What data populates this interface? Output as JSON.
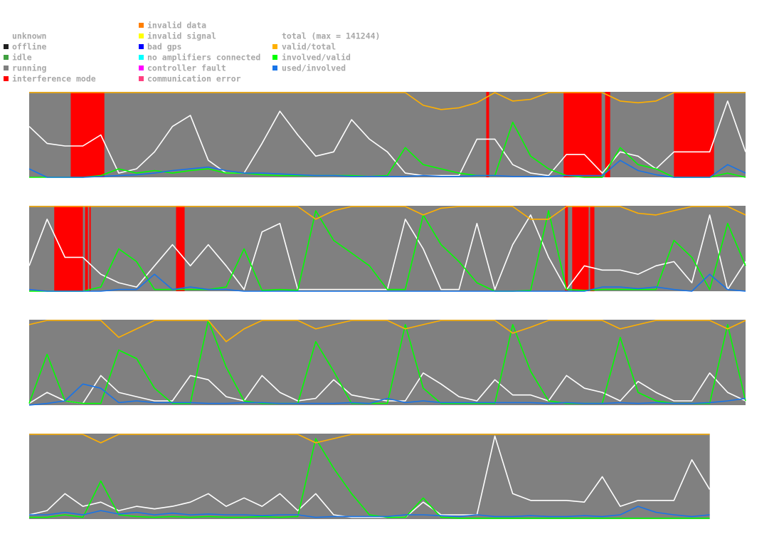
{
  "legend": {
    "states": [
      {
        "label": "unknown",
        "color": "#ffffff"
      },
      {
        "label": "offline",
        "color": "#202020"
      },
      {
        "label": "idle",
        "color": "#40a040"
      },
      {
        "label": "running",
        "color": "#808080"
      },
      {
        "label": "interference mode",
        "color": "#ff0000"
      },
      {
        "label": "invalid data",
        "color": "#ff7f00"
      },
      {
        "label": "invalid signal",
        "color": "#ffff00"
      },
      {
        "label": "bad gps",
        "color": "#0000ff"
      },
      {
        "label": "no amplifiers connected",
        "color": "#00ffff"
      },
      {
        "label": "controller fault",
        "color": "#ff00ff"
      },
      {
        "label": "communication error",
        "color": "#ff4080"
      }
    ],
    "lines": [
      {
        "label": "total (max = 141244)",
        "color": "#ffffff"
      },
      {
        "label": "valid/total",
        "color": "#ffb000"
      },
      {
        "label": "involved/valid",
        "color": "#00ff00"
      },
      {
        "label": "used/involved",
        "color": "#1874e8"
      }
    ]
  },
  "chart_data": [
    {
      "type": "line",
      "xlim": [
        0,
        100
      ],
      "ylim": [
        0,
        1
      ],
      "x": [
        0,
        2.5,
        5,
        7.5,
        10,
        12.5,
        15,
        17.5,
        20,
        22.5,
        25,
        27.5,
        30,
        32.5,
        35,
        37.5,
        40,
        42.5,
        45,
        47.5,
        50,
        52.5,
        55,
        57.5,
        60,
        62.5,
        65,
        67.5,
        70,
        72.5,
        75,
        77.5,
        80,
        82.5,
        85,
        87.5,
        90,
        92.5,
        95,
        97.5,
        100
      ],
      "interference": [
        [
          5.8,
          10.5
        ],
        [
          63.8,
          64.2
        ],
        [
          74.6,
          79.9
        ],
        [
          80.4,
          81.1
        ],
        [
          90,
          95.6
        ]
      ],
      "series": [
        {
          "color": "#ffffff",
          "values": [
            0.6,
            0.4,
            0.37,
            0.37,
            0.5,
            0.05,
            0.1,
            0.3,
            0.6,
            0.73,
            0.2,
            0.05,
            0.05,
            0.4,
            0.78,
            0.5,
            0.25,
            0.3,
            0.68,
            0.45,
            0.3,
            0.05,
            0.02,
            0.02,
            0.02,
            0.45,
            0.45,
            0.15,
            0.05,
            0.02,
            0.27,
            0.27,
            0.05,
            0.3,
            0.25,
            0.1,
            0.3,
            0.3,
            0.3,
            0.9,
            0.3
          ]
        },
        {
          "color": "#00ff00",
          "values": [
            0,
            0,
            0,
            0,
            0.02,
            0.1,
            0.05,
            0.08,
            0.05,
            0.08,
            0.1,
            0.05,
            0.05,
            0.03,
            0.02,
            0.02,
            0.02,
            0.02,
            0.02,
            0.01,
            0.02,
            0.35,
            0.15,
            0.1,
            0.05,
            0.02,
            0.02,
            0.65,
            0.25,
            0.1,
            0.02,
            0,
            0,
            0.35,
            0.15,
            0.1,
            0,
            0,
            0,
            0.05,
            0
          ]
        },
        {
          "color": "#1874e8",
          "values": [
            0.1,
            0,
            0,
            0,
            0.01,
            0.02,
            0.03,
            0.05,
            0.08,
            0.1,
            0.12,
            0.08,
            0.05,
            0.05,
            0.04,
            0.03,
            0.02,
            0.02,
            0.01,
            0.01,
            0.01,
            0.01,
            0.02,
            0.01,
            0.01,
            0.02,
            0.02,
            0.01,
            0.01,
            0.01,
            0.02,
            0.02,
            0.02,
            0.2,
            0.08,
            0.03,
            0,
            0,
            0,
            0.15,
            0.05
          ]
        },
        {
          "color": "#ffb000",
          "values": [
            1,
            1,
            1,
            1,
            1,
            1,
            1,
            1,
            1,
            1,
            1,
            1,
            1,
            1,
            1,
            1,
            1,
            1,
            1,
            1,
            1,
            1,
            0.85,
            0.8,
            0.82,
            0.88,
            1,
            0.9,
            0.92,
            1,
            1,
            1,
            1,
            0.9,
            0.88,
            0.9,
            1,
            1,
            1,
            1,
            1
          ]
        }
      ]
    },
    {
      "type": "line",
      "xlim": [
        0,
        100
      ],
      "ylim": [
        0,
        1
      ],
      "x": [
        0,
        2.5,
        5,
        7.5,
        10,
        12.5,
        15,
        17.5,
        20,
        22.5,
        25,
        27.5,
        30,
        32.5,
        35,
        37.5,
        40,
        42.5,
        45,
        47.5,
        50,
        52.5,
        55,
        57.5,
        60,
        62.5,
        65,
        67.5,
        70,
        72.5,
        75,
        77.5,
        80,
        82.5,
        85,
        87.5,
        90,
        92.5,
        95,
        97.5,
        100
      ],
      "interference": [
        [
          3.5,
          7.5
        ],
        [
          7.8,
          8.2
        ],
        [
          8.4,
          8.6
        ],
        [
          20.5,
          21.7
        ],
        [
          74.8,
          75.2
        ],
        [
          75.8,
          78.1
        ],
        [
          78.3,
          78.9
        ]
      ],
      "series": [
        {
          "color": "#ffffff",
          "values": [
            0.3,
            0.85,
            0.4,
            0.4,
            0.2,
            0.1,
            0.05,
            0.3,
            0.55,
            0.3,
            0.55,
            0.3,
            0.02,
            0.7,
            0.8,
            0.02,
            0.02,
            0.02,
            0.02,
            0.02,
            0.02,
            0.85,
            0.5,
            0.02,
            0.02,
            0.8,
            0.02,
            0.55,
            0.9,
            0.4,
            0.02,
            0.3,
            0.25,
            0.25,
            0.2,
            0.3,
            0.35,
            0.1,
            0.9,
            0.02,
            0.35
          ]
        },
        {
          "color": "#00ff00",
          "values": [
            0,
            0,
            0,
            0,
            0.05,
            0.5,
            0.35,
            0.02,
            0.02,
            0.02,
            0.02,
            0.05,
            0.5,
            0.01,
            0.02,
            0.01,
            0.95,
            0.6,
            0.45,
            0.3,
            0.02,
            0.02,
            0.9,
            0.55,
            0.35,
            0.1,
            0,
            0,
            0.01,
            0.95,
            0.02,
            0.01,
            0.02,
            0.02,
            0.02,
            0.02,
            0.6,
            0.4,
            0.02,
            0.8,
            0.3
          ]
        },
        {
          "color": "#1874e8",
          "values": [
            0.02,
            0,
            0,
            0,
            0,
            0.02,
            0.02,
            0.2,
            0.02,
            0.05,
            0.02,
            0.02,
            0,
            0,
            0,
            0,
            0,
            0,
            0,
            0,
            0,
            0,
            0,
            0,
            0,
            0,
            0,
            0,
            0,
            0,
            0,
            0,
            0.05,
            0.05,
            0.03,
            0.05,
            0.02,
            0,
            0.2,
            0.02,
            0
          ]
        },
        {
          "color": "#ffb000",
          "values": [
            1,
            1,
            1,
            1,
            1,
            1,
            1,
            1,
            1,
            1,
            1,
            1,
            1,
            1,
            1,
            1,
            0.85,
            0.95,
            1,
            1,
            1,
            1,
            0.9,
            0.98,
            1,
            1,
            1,
            1,
            0.85,
            0.85,
            1,
            1,
            1,
            1,
            0.92,
            0.9,
            0.95,
            1,
            1,
            1,
            0.9
          ]
        }
      ]
    },
    {
      "type": "line",
      "xlim": [
        0,
        100
      ],
      "ylim": [
        0,
        1
      ],
      "x": [
        0,
        2.5,
        5,
        7.5,
        10,
        12.5,
        15,
        17.5,
        20,
        22.5,
        25,
        27.5,
        30,
        32.5,
        35,
        37.5,
        40,
        42.5,
        45,
        47.5,
        50,
        52.5,
        55,
        57.5,
        60,
        62.5,
        65,
        67.5,
        70,
        72.5,
        75,
        77.5,
        80,
        82.5,
        85,
        87.5,
        90,
        92.5,
        95,
        97.5,
        100
      ],
      "interference": [],
      "series": [
        {
          "color": "#ffffff",
          "values": [
            0.02,
            0.15,
            0.05,
            0.02,
            0.35,
            0.15,
            0.1,
            0.05,
            0.05,
            0.35,
            0.3,
            0.1,
            0.05,
            0.35,
            0.15,
            0.05,
            0.08,
            0.3,
            0.12,
            0.08,
            0.05,
            0.05,
            0.38,
            0.25,
            0.1,
            0.05,
            0.3,
            0.12,
            0.12,
            0.05,
            0.35,
            0.2,
            0.15,
            0.05,
            0.28,
            0.15,
            0.05,
            0.05,
            0.38,
            0.15,
            0.05
          ]
        },
        {
          "color": "#00ff00",
          "values": [
            0.02,
            0.6,
            0.05,
            0.02,
            0.02,
            0.65,
            0.55,
            0.2,
            0.02,
            0.02,
            1,
            0.45,
            0.05,
            0.02,
            0.02,
            0.02,
            0.75,
            0.4,
            0.02,
            0.02,
            0.02,
            0.95,
            0.2,
            0.02,
            0.02,
            0.02,
            0.02,
            0.95,
            0.4,
            0.05,
            0.02,
            0.02,
            0.02,
            0.8,
            0.15,
            0.05,
            0.02,
            0.02,
            0.02,
            0.95,
            0.05
          ]
        },
        {
          "color": "#1874e8",
          "values": [
            0,
            0.02,
            0.05,
            0.25,
            0.2,
            0.03,
            0.05,
            0.03,
            0.03,
            0.03,
            0.02,
            0.02,
            0.03,
            0.03,
            0.02,
            0.02,
            0.02,
            0.02,
            0.03,
            0.02,
            0.08,
            0.03,
            0.05,
            0.03,
            0.03,
            0.03,
            0.03,
            0.03,
            0.03,
            0.02,
            0.03,
            0.02,
            0.02,
            0.03,
            0.02,
            0.03,
            0.02,
            0.02,
            0.03,
            0.05,
            0.08
          ]
        },
        {
          "color": "#ffb000",
          "values": [
            0.95,
            1,
            1,
            1,
            1,
            0.8,
            0.9,
            1,
            1,
            1,
            1,
            0.75,
            0.9,
            1,
            1,
            1,
            0.9,
            0.95,
            1,
            1,
            1,
            0.9,
            0.95,
            1,
            1,
            1,
            1,
            0.85,
            0.92,
            1,
            1,
            1,
            1,
            0.9,
            0.95,
            1,
            1,
            1,
            1,
            0.9,
            1
          ]
        }
      ]
    },
    {
      "type": "line",
      "xlim": [
        0,
        100
      ],
      "ylim": [
        0,
        1
      ],
      "x": [
        0,
        2.5,
        5,
        7.5,
        10,
        12.5,
        15,
        17.5,
        20,
        22.5,
        25,
        27.5,
        30,
        32.5,
        35,
        37.5,
        40,
        42.5,
        45,
        47.5,
        50,
        52.5,
        55,
        57.5,
        60,
        62.5,
        65,
        67.5,
        70,
        72.5,
        75,
        77.5,
        80,
        82.5,
        85,
        87.5,
        90,
        92.5,
        95
      ],
      "interference": [],
      "series": [
        {
          "color": "#ffffff",
          "values": [
            0.05,
            0.1,
            0.3,
            0.15,
            0.2,
            0.1,
            0.15,
            0.12,
            0.15,
            0.2,
            0.3,
            0.15,
            0.25,
            0.15,
            0.3,
            0.1,
            0.3,
            0.05,
            0.02,
            0.02,
            0.02,
            0.02,
            0.2,
            0.05,
            0.05,
            0.05,
            0.98,
            0.3,
            0.22,
            0.22,
            0.22,
            0.2,
            0.5,
            0.15,
            0.22,
            0.22,
            0.22,
            0.7,
            0.35
          ]
        },
        {
          "color": "#00ff00",
          "values": [
            0.02,
            0.02,
            0.05,
            0.02,
            0.45,
            0.05,
            0.03,
            0.02,
            0.03,
            0.02,
            0.03,
            0.02,
            0.02,
            0.03,
            0.02,
            0.03,
            0.95,
            0.6,
            0.3,
            0.05,
            0.02,
            0.02,
            0.25,
            0.02,
            0.01,
            0.01,
            0.01,
            0.01,
            0.01,
            0.01,
            0.01,
            0.01,
            0.01,
            0.01,
            0.01,
            0.01,
            0.01,
            0.01,
            0.01
          ]
        },
        {
          "color": "#1874e8",
          "values": [
            0.05,
            0.05,
            0.08,
            0.05,
            0.1,
            0.06,
            0.08,
            0.05,
            0.07,
            0.05,
            0.06,
            0.05,
            0.05,
            0.04,
            0.05,
            0.05,
            0.02,
            0.03,
            0.03,
            0.03,
            0.03,
            0.05,
            0.05,
            0.04,
            0.03,
            0.05,
            0.03,
            0.03,
            0.04,
            0.03,
            0.03,
            0.04,
            0.03,
            0.05,
            0.15,
            0.08,
            0.05,
            0.03,
            0.05
          ]
        },
        {
          "color": "#ffb000",
          "values": [
            1,
            1,
            1,
            1,
            0.9,
            1,
            1,
            1,
            1,
            1,
            1,
            1,
            1,
            1,
            1,
            1,
            0.9,
            0.95,
            1,
            1,
            1,
            1,
            1,
            1,
            1,
            1,
            1,
            1,
            1,
            1,
            1,
            1,
            1,
            1,
            1,
            1,
            1,
            1,
            1
          ]
        }
      ]
    }
  ]
}
